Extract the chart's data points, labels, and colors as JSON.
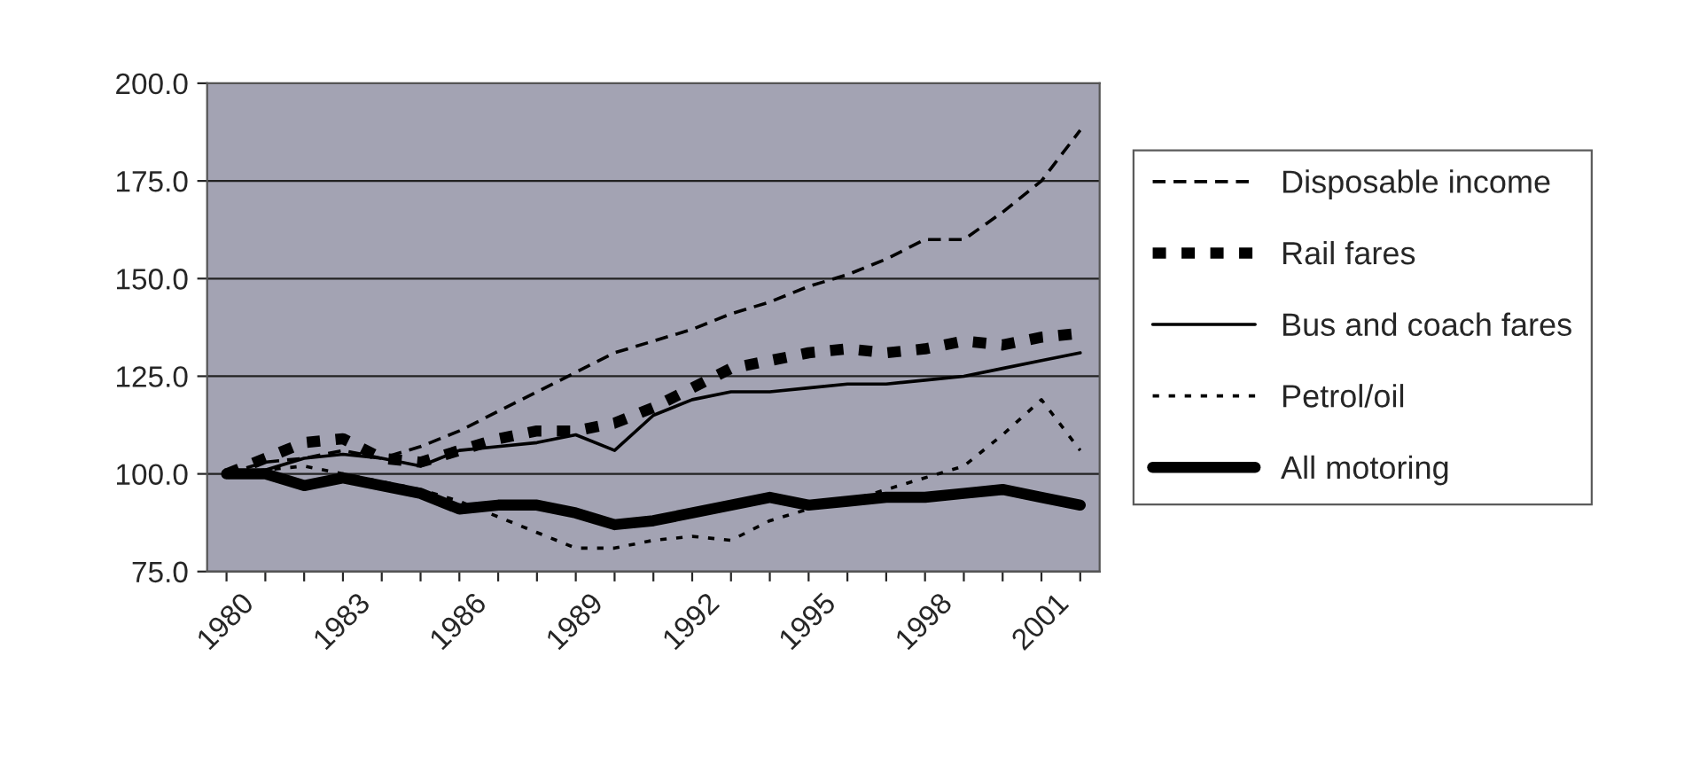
{
  "chart_data": {
    "type": "line",
    "x": [
      1980,
      1981,
      1982,
      1983,
      1984,
      1985,
      1986,
      1987,
      1988,
      1989,
      1990,
      1991,
      1992,
      1993,
      1994,
      1995,
      1996,
      1997,
      1998,
      1999,
      2000,
      2001,
      2002
    ],
    "series": [
      {
        "name": "Disposable income",
        "color": "#000000",
        "line_style": "dashed",
        "values": [
          100,
          103,
          104,
          106,
          104,
          107,
          111,
          116,
          121,
          126,
          131,
          134,
          137,
          141,
          144,
          148,
          151,
          155,
          160,
          160,
          167,
          175,
          188
        ]
      },
      {
        "name": "Rail fares",
        "color": "#000000",
        "line_style": "dashed",
        "values": [
          100,
          104,
          108,
          109,
          104,
          103,
          106,
          109,
          111,
          111,
          113,
          117,
          122,
          127,
          129,
          131,
          132,
          131,
          132,
          134,
          133,
          135,
          136
        ]
      },
      {
        "name": "Bus and coach fares",
        "color": "#000000",
        "line_style": "solid",
        "values": [
          100,
          101,
          104,
          105,
          104,
          102,
          106,
          107,
          108,
          110,
          106,
          115,
          119,
          121,
          121,
          122,
          123,
          123,
          124,
          125,
          127,
          129,
          131
        ]
      },
      {
        "name": "Petrol/oil",
        "color": "#000000",
        "line_style": "dotted",
        "values": [
          100,
          101,
          102,
          100,
          98,
          96,
          93,
          89,
          85,
          81,
          81,
          83,
          84,
          83,
          88,
          91,
          93,
          96,
          99,
          102,
          110,
          119,
          106
        ]
      },
      {
        "name": "All motoring",
        "color": "#000000",
        "line_style": "solid",
        "values": [
          100,
          100,
          97,
          99,
          97,
          95,
          91,
          92,
          92,
          90,
          87,
          88,
          90,
          92,
          94,
          92,
          93,
          94,
          94,
          95,
          96,
          94,
          92
        ]
      }
    ],
    "xlim": [
      1979.5,
      2002.5
    ],
    "xticks": [
      1980,
      {
        "value": 1981,
        "label": null
      },
      {
        "value": 1982,
        "label": null
      },
      1983,
      {
        "value": 1984,
        "label": null
      },
      {
        "value": 1985,
        "label": null
      },
      1986,
      {
        "value": 1987,
        "label": null
      },
      {
        "value": 1988,
        "label": null
      },
      1989,
      {
        "value": 1990,
        "label": null
      },
      {
        "value": 1991,
        "label": null
      },
      1992,
      {
        "value": 1993,
        "label": null
      },
      {
        "value": 1994,
        "label": null
      },
      1995,
      {
        "value": 1996,
        "label": null
      },
      {
        "value": 1997,
        "label": null
      },
      1998,
      {
        "value": 1999,
        "label": null
      },
      {
        "value": 2000,
        "label": null
      },
      2001,
      {
        "value": 2002,
        "label": null
      }
    ],
    "ylim": [
      75,
      200
    ],
    "yticks": [
      {
        "value": 75,
        "label": "75.0"
      },
      {
        "value": 100,
        "label": "100.0"
      },
      {
        "value": 125,
        "label": "125.0"
      },
      {
        "value": 150,
        "label": "150.0"
      },
      {
        "value": 175,
        "label": "175.0"
      },
      {
        "value": 200,
        "label": "200.0"
      }
    ],
    "grid": "y",
    "legend": "right",
    "marker": "none"
  }
}
